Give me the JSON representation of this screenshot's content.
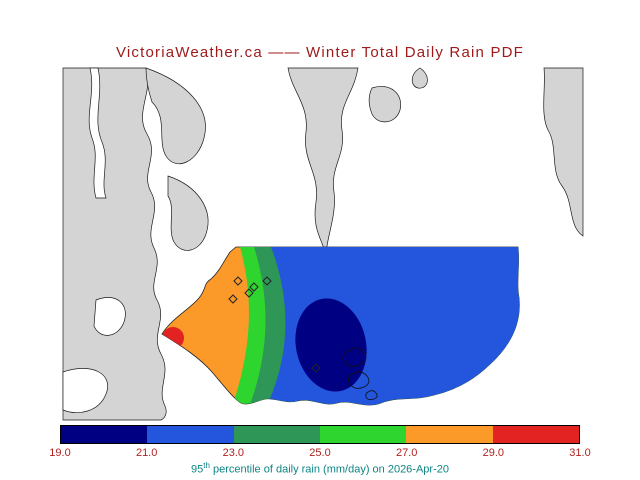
{
  "title": "VictoriaWeather.ca —— Winter Total Daily Rain PDF",
  "caption": {
    "number": "95",
    "superscript": "th",
    "rest": " percentile of daily rain (mm/day) on 2026-Apr-20"
  },
  "text_colors": {
    "title": "#9e1a1a",
    "ticks": "#b22222",
    "caption": "#0e8585"
  },
  "map": {
    "water_color": "#d4d4d4",
    "land_color": "#ffffff",
    "coastline_color": "#1a1a1a"
  },
  "chart_data": {
    "type": "heatmap",
    "title": "VictoriaWeather.ca —— Winter Total Daily Rain PDF",
    "variable": "95th percentile of daily rain",
    "units": "mm/day",
    "date": "2026-Apr-20",
    "legend_position": "bottom",
    "colorbar": {
      "ticks": [
        "19.0",
        "21.0",
        "23.0",
        "25.0",
        "27.0",
        "29.0",
        "31.0"
      ],
      "levels": [
        19.0,
        21.0,
        23.0,
        25.0,
        27.0,
        29.0,
        31.0
      ],
      "colors": [
        "#000082",
        "#2355dd",
        "#2e9657",
        "#2ed52e",
        "#fb9a28",
        "#e32222"
      ]
    },
    "bands": [
      {
        "range": "19.0-21.0",
        "color": "#000082",
        "region": "small oval core in south-central area"
      },
      {
        "range": "21.0-23.0",
        "color": "#2355dd",
        "region": "large eastern area"
      },
      {
        "range": "23.0-25.0",
        "color": "#2e9657",
        "region": "narrow band west of blue area"
      },
      {
        "range": "25.0-27.0",
        "color": "#2ed52e",
        "region": "narrow band west of sea-green band"
      },
      {
        "range": "27.0-29.0",
        "color": "#fb9a28",
        "region": "western area"
      },
      {
        "range": "29.0-31.0",
        "color": "#e32222",
        "region": "small round spot at west edge"
      }
    ],
    "station_markers": 6
  }
}
